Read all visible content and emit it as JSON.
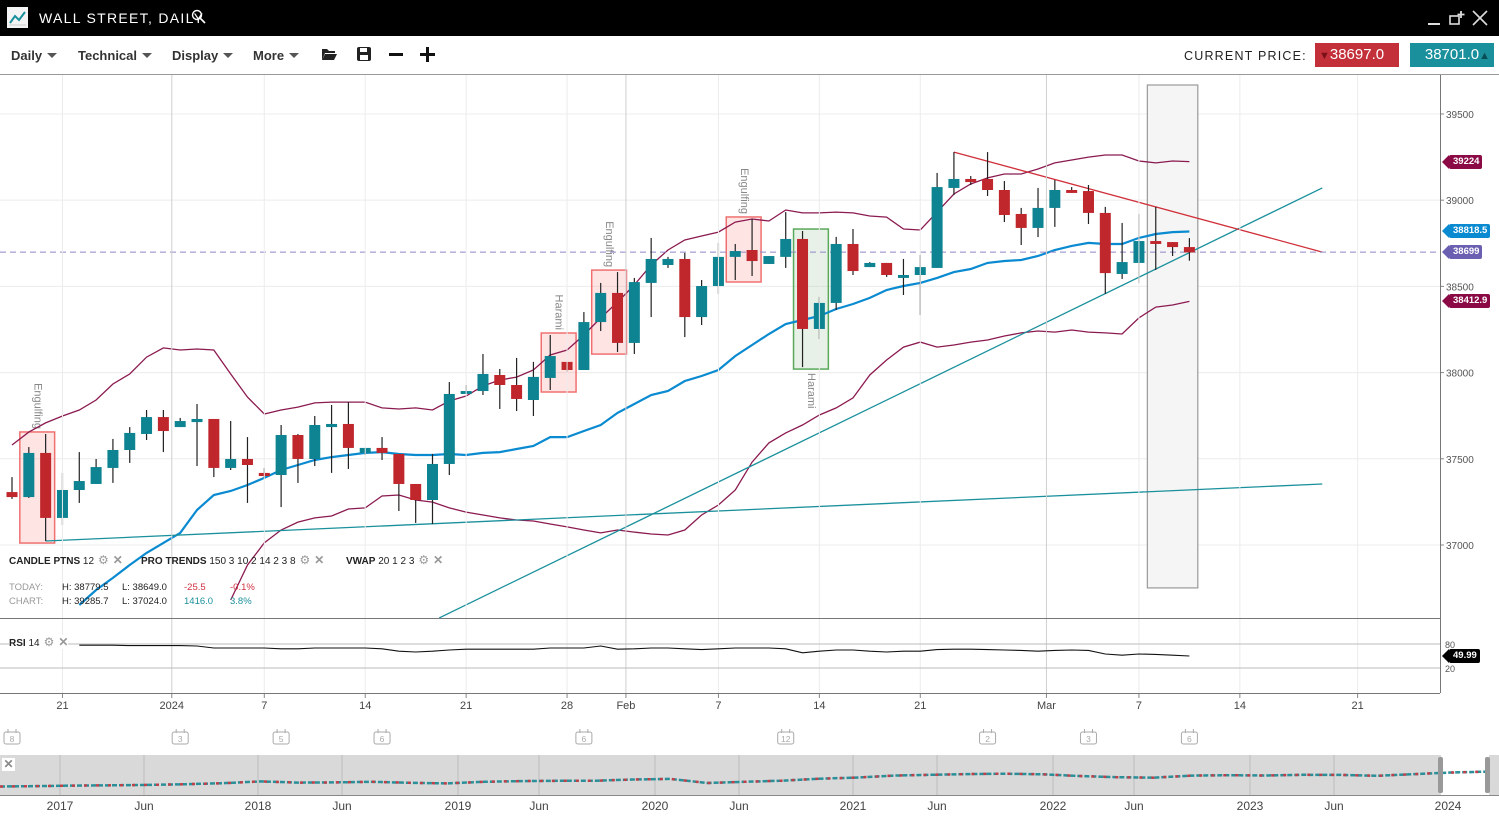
{
  "window": {
    "title": "WALL STREET, DAILY",
    "icons": [
      "chart-logo-icon",
      "search-icon",
      "minimize-icon",
      "popout-icon",
      "close-icon"
    ]
  },
  "toolbar": {
    "menus": [
      "Daily",
      "Technical",
      "Display",
      "More"
    ],
    "icons": [
      "open-folder-icon",
      "save-icon",
      "zoom-out-icon",
      "zoom-in-icon"
    ],
    "current_price_label": "CURRENT PRICE:",
    "sell_price": "38697.0",
    "buy_price": "38701.0"
  },
  "indicators": {
    "candle_patterns": {
      "name": "CANDLE PTNS",
      "params": "12"
    },
    "pro_trends": {
      "name": "PRO TRENDS",
      "params": "150 3 10 2 14 2 3 8"
    },
    "vwap": {
      "name": "VWAP",
      "params": "20 1 2 3"
    },
    "rsi": {
      "name": "RSI",
      "params": "14"
    }
  },
  "stats": {
    "today_label": "TODAY:",
    "today_high": "H: 38779.5",
    "today_low": "L: 38649.0",
    "today_change": "-25.5",
    "today_pct": "-0.1%",
    "chart_label": "CHART:",
    "chart_high": "H: 39285.7",
    "chart_low": "L: 37024.0",
    "chart_change": "1416.0",
    "chart_pct": "3.8%"
  },
  "colors": {
    "up": "#0e8391",
    "down": "#c0272d",
    "vwap": "#0a8ad0",
    "bands": "#8b1a50",
    "trend_up": "#1a909c",
    "trend_down": "#d0303a",
    "current_price_line": "#8f86c8",
    "engulfing_box": "#f07070",
    "harami_box_bull": "#5aa85a"
  },
  "chart_data": {
    "type": "candlestick",
    "price_axis": {
      "ticks": [
        39500,
        39000,
        38500,
        38000,
        37500,
        37000
      ],
      "range": [
        36577,
        39731
      ]
    },
    "x_ticks": [
      {
        "label": "21",
        "at": 3
      },
      {
        "label": "2024",
        "at": 9.5,
        "major": true
      },
      {
        "label": "7",
        "at": 15
      },
      {
        "label": "14",
        "at": 21
      },
      {
        "label": "21",
        "at": 27
      },
      {
        "label": "28",
        "at": 33
      },
      {
        "label": "Feb",
        "at": 36.5,
        "major": true
      },
      {
        "label": "7",
        "at": 42
      },
      {
        "label": "14",
        "at": 48
      },
      {
        "label": "21",
        "at": 54
      },
      {
        "label": "Mar",
        "at": 61.5,
        "major": true
      },
      {
        "label": "7",
        "at": 67
      },
      {
        "label": "14",
        "at": 73
      },
      {
        "label": "21",
        "at": 80
      }
    ],
    "candles_ohlc": [
      [
        37307,
        37394,
        37267,
        37278
      ],
      [
        37278,
        37568,
        37273,
        37534
      ],
      [
        37534,
        37644,
        37023,
        37157
      ],
      [
        37157,
        37418,
        37116,
        37319
      ],
      [
        37319,
        37539,
        37244,
        37371
      ],
      [
        37354,
        37499,
        37354,
        37452
      ],
      [
        37447,
        37615,
        37360,
        37551
      ],
      [
        37551,
        37684,
        37476,
        37650
      ],
      [
        37644,
        37783,
        37609,
        37742
      ],
      [
        37742,
        37783,
        37539,
        37661
      ],
      [
        37684,
        37737,
        37684,
        37719
      ],
      [
        37713,
        37818,
        37458,
        37731
      ],
      [
        37731,
        37731,
        37394,
        37447
      ],
      [
        37447,
        37719,
        37435,
        37499
      ],
      [
        37499,
        37626,
        37244,
        37464
      ],
      [
        37418,
        37447,
        37389,
        37400
      ],
      [
        37406,
        37696,
        37220,
        37638
      ],
      [
        37638,
        37644,
        37360,
        37499
      ],
      [
        37499,
        37748,
        37458,
        37696
      ],
      [
        37684,
        37812,
        37418,
        37702
      ],
      [
        37702,
        37829,
        37441,
        37563
      ],
      [
        37534,
        37563,
        37522,
        37563
      ],
      [
        37563,
        37626,
        37493,
        37534
      ],
      [
        37528,
        37528,
        37197,
        37354
      ],
      [
        37354,
        37354,
        37128,
        37261
      ],
      [
        37261,
        37528,
        37122,
        37470
      ],
      [
        37470,
        37945,
        37406,
        37876
      ],
      [
        37876,
        37928,
        37876,
        37893
      ],
      [
        37893,
        38108,
        37870,
        37992
      ],
      [
        37986,
        38021,
        37789,
        37928
      ],
      [
        37928,
        38085,
        37777,
        37847
      ],
      [
        37841,
        38062,
        37748,
        37975
      ],
      [
        37969,
        38218,
        37899,
        38096
      ],
      [
        38062,
        38062,
        38004,
        38015
      ],
      [
        38015,
        38351,
        38015,
        38293
      ],
      [
        38293,
        38520,
        38241,
        38462
      ],
      [
        38462,
        38583,
        38119,
        38172
      ],
      [
        38172,
        38549,
        38108,
        38525
      ],
      [
        38520,
        38781,
        38322,
        38659
      ],
      [
        38624,
        38671,
        38607,
        38659
      ],
      [
        38659,
        38694,
        38206,
        38322
      ],
      [
        38322,
        38537,
        38276,
        38502
      ],
      [
        38502,
        38752,
        38456,
        38671
      ],
      [
        38671,
        38746,
        38537,
        38705
      ],
      [
        38711,
        38891,
        38560,
        38647
      ],
      [
        38630,
        38676,
        38630,
        38676
      ],
      [
        38671,
        38931,
        38607,
        38775
      ],
      [
        38775,
        38821,
        38032,
        38253
      ],
      [
        38253,
        38439,
        38195,
        38404
      ],
      [
        38404,
        38787,
        38363,
        38746
      ],
      [
        38746,
        38833,
        38566,
        38589
      ],
      [
        38612,
        38641,
        38612,
        38636
      ],
      [
        38636,
        38636,
        38555,
        38566
      ],
      [
        38549,
        38659,
        38450,
        38566
      ],
      [
        38566,
        38682,
        38334,
        38612
      ],
      [
        38607,
        39158,
        38607,
        39076
      ],
      [
        39071,
        39279,
        39030,
        39123
      ],
      [
        39123,
        39140,
        39088,
        39105
      ],
      [
        39123,
        39279,
        39024,
        39059
      ],
      [
        39059,
        39111,
        38873,
        38914
      ],
      [
        38920,
        38955,
        38740,
        38839
      ],
      [
        38839,
        39071,
        38786,
        38955
      ],
      [
        38955,
        39117,
        38845,
        39059
      ],
      [
        39059,
        39076,
        39042,
        39042
      ],
      [
        39053,
        39088,
        38862,
        38926
      ],
      [
        38926,
        38961,
        38456,
        38577
      ],
      [
        38572,
        38868,
        38543,
        38641
      ],
      [
        38636,
        38920,
        38520,
        38763
      ],
      [
        38763,
        38961,
        38595,
        38746
      ],
      [
        38757,
        38757,
        38676,
        38728
      ],
      [
        38728,
        38780,
        38649,
        38697
      ]
    ],
    "vwap": [
      null,
      null,
      null,
      null,
      36652,
      36739,
      36809,
      36884,
      36954,
      37012,
      37070,
      37203,
      37290,
      37313,
      37348,
      37389,
      37435,
      37464,
      37493,
      37510,
      37522,
      37534,
      37539,
      37528,
      37522,
      37522,
      37528,
      37522,
      37534,
      37539,
      37557,
      37574,
      37626,
      37626,
      37661,
      37696,
      37766,
      37818,
      37870,
      37893,
      37951,
      37980,
      38015,
      38096,
      38160,
      38224,
      38282,
      38305,
      38328,
      38369,
      38398,
      38433,
      38479,
      38502,
      38520,
      38549,
      38583,
      38601,
      38636,
      38647,
      38653,
      38676,
      38711,
      38735,
      38752,
      38746,
      38746,
      38781,
      38804,
      38815,
      38818.5
    ],
    "upper_band": [
      37580,
      37655,
      37708,
      37748,
      37783,
      37841,
      37934,
      37992,
      38090,
      38143,
      38131,
      38137,
      38131,
      37992,
      37858,
      37760,
      37783,
      37800,
      37824,
      37829,
      37829,
      37829,
      37795,
      37789,
      37795,
      37783,
      37835,
      37864,
      37922,
      37957,
      37974,
      38015,
      38102,
      38131,
      38218,
      38317,
      38409,
      38508,
      38624,
      38711,
      38769,
      38792,
      38815,
      38873,
      38891,
      38879,
      38943,
      38926,
      38926,
      38931,
      38926,
      38908,
      38902,
      38833,
      38827,
      38931,
      39036,
      39094,
      39129,
      39152,
      39152,
      39181,
      39216,
      39233,
      39250,
      39262,
      39262,
      39227,
      39216,
      39227,
      39224
    ],
    "lower_band": [
      null,
      null,
      null,
      null,
      null,
      null,
      null,
      null,
      null,
      null,
      null,
      null,
      null,
      36681,
      36884,
      37012,
      37087,
      37133,
      37157,
      37168,
      37209,
      37215,
      37284,
      37290,
      37261,
      37249,
      37215,
      37191,
      37174,
      37157,
      37145,
      37139,
      37122,
      37105,
      37087,
      37070,
      37087,
      37075,
      37064,
      37058,
      37087,
      37174,
      37232,
      37319,
      37481,
      37592,
      37650,
      37696,
      37754,
      37795,
      37853,
      37986,
      38073,
      38148,
      38177,
      38148,
      38160,
      38177,
      38189,
      38212,
      38230,
      38241,
      38235,
      38247,
      38235,
      38230,
      38224,
      38317,
      38380,
      38392,
      38412.9
    ],
    "rsi": {
      "levels": [
        80,
        20
      ],
      "range": [
        0,
        100
      ],
      "values": [
        null,
        null,
        null,
        null,
        77,
        77,
        77,
        76,
        76,
        76,
        76,
        75,
        70,
        70,
        70,
        70,
        68,
        68,
        70,
        70,
        70,
        70,
        68,
        62,
        60,
        62,
        65,
        67,
        67,
        67,
        67,
        67,
        70,
        70,
        70,
        75,
        67,
        68,
        70,
        70,
        68,
        66,
        68,
        70,
        70,
        70,
        68,
        58,
        62,
        65,
        65,
        62,
        60,
        62,
        62,
        66,
        67,
        67,
        66,
        65,
        64,
        62,
        64,
        65,
        64,
        55,
        52,
        55,
        54,
        52,
        49.99
      ]
    },
    "trendlines": [
      {
        "color": "trend_up",
        "from": [
          2,
          37023
        ],
        "to": [
          77.9,
          37354
        ]
      },
      {
        "color": "trend_up",
        "from": [
          25.4,
          36577
        ],
        "to": [
          77.9,
          39071
        ]
      },
      {
        "color": "trend_down",
        "from": [
          56,
          39279
        ],
        "to": [
          77.9,
          38699
        ]
      }
    ],
    "current_price_line": 38699,
    "highlight_zone": {
      "from": 67.5,
      "to": 70.5,
      "top": 39668,
      "bottom": 36751
    },
    "patterns": [
      {
        "label": "Engulfing",
        "bars": [
          1,
          2
        ],
        "kind": "bear",
        "label_pos": "above"
      },
      {
        "label": "Harami",
        "bars": [
          32,
          33
        ],
        "kind": "bear",
        "label_pos": "above"
      },
      {
        "label": "Engulfing",
        "bars": [
          35,
          36
        ],
        "kind": "bear",
        "label_pos": "above"
      },
      {
        "label": "Engulfing",
        "bars": [
          43,
          44
        ],
        "kind": "bear",
        "label_pos": "above"
      },
      {
        "label": "Harami",
        "bars": [
          47,
          48
        ],
        "kind": "bull",
        "label_pos": "below"
      }
    ],
    "price_tags": [
      {
        "value": "39224",
        "price": 39224,
        "color": "#8b0a46"
      },
      {
        "value": "38818.5",
        "price": 38818.5,
        "color": "#0a8ad0"
      },
      {
        "value": "38699",
        "price": 38699,
        "color": "#6a5fb0"
      },
      {
        "value": "38412.9",
        "price": 38412.9,
        "color": "#8b0a46"
      }
    ],
    "rsi_tag": "49.99"
  },
  "events": [
    {
      "count": "8",
      "at": 0
    },
    {
      "count": "3",
      "at": 10
    },
    {
      "count": "5",
      "at": 16
    },
    {
      "count": "6",
      "at": 22
    },
    {
      "count": "6",
      "at": 34
    },
    {
      "count": "12",
      "at": 46
    },
    {
      "count": "2",
      "at": 58
    },
    {
      "count": "3",
      "at": 64
    },
    {
      "count": "6",
      "at": 70
    }
  ],
  "navigator": {
    "labels": [
      "2017",
      "Jun",
      "2018",
      "Jun",
      "2019",
      "Jun",
      "2020",
      "Jun",
      "2021",
      "Jun",
      "2022",
      "Jun",
      "2023",
      "Jun",
      "2024"
    ],
    "series": [
      19500,
      20000,
      20600,
      21000,
      21600,
      22500,
      23800,
      26000,
      24500,
      24800,
      25500,
      24300,
      23500,
      25500,
      26500,
      26800,
      27000,
      28500,
      29300,
      24000,
      25500,
      27000,
      29500,
      31000,
      33500,
      34500,
      35500,
      36000,
      35200,
      33000,
      31500,
      30800,
      33500,
      34000,
      33600,
      34500,
      34400,
      33200,
      35500,
      37500,
      38700
    ]
  }
}
